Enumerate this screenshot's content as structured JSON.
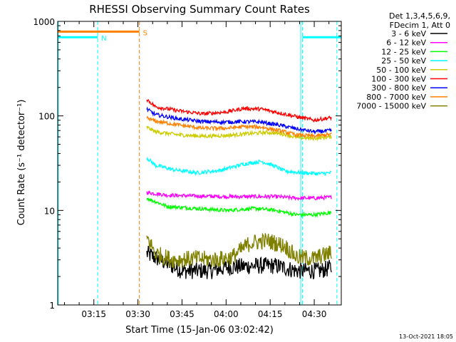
{
  "chart_data": {
    "type": "line",
    "title": "RHESSI Observing Summary Count Rates",
    "xlabel": "Start Time (15-Jan-06 03:02:42)",
    "ylabel": "Count Rate (s⁻¹ detector⁻¹)",
    "x_ticks": [
      "03:15",
      "03:30",
      "03:45",
      "04:00",
      "04:15",
      "04:30"
    ],
    "x_tick_minutes": [
      15,
      30,
      45,
      60,
      75,
      90
    ],
    "xlim_minutes": [
      2.7,
      99.2
    ],
    "y_scale": "log",
    "ylim": [
      1,
      1000
    ],
    "y_ticks": [
      "1",
      "10",
      "100",
      "1000"
    ],
    "y_tick_values": [
      1,
      10,
      100,
      1000
    ],
    "legend_header": [
      "Det 1,3,4,5,6,9,",
      "FDecim 1, Att 0"
    ],
    "legend_placement": "right",
    "series": [
      {
        "name": "3 - 6 keV",
        "color": "#000000",
        "x": [
          33,
          45,
          55,
          60,
          70,
          77,
          84,
          88,
          92,
          96
        ],
        "y": [
          3.5,
          2.3,
          2.3,
          2.5,
          2.6,
          2.6,
          2.3,
          2.3,
          2.3,
          2.5
        ]
      },
      {
        "name": "6 - 12 keV",
        "color": "#ff00ff",
        "x": [
          33,
          40,
          50,
          60,
          70,
          77,
          84,
          90,
          96
        ],
        "y": [
          15.5,
          14.5,
          14.2,
          14,
          14,
          14,
          13.5,
          13.5,
          13.8
        ]
      },
      {
        "name": "12 - 25 keV",
        "color": "#00ff00",
        "x": [
          33,
          40,
          50,
          60,
          70,
          77,
          84,
          90,
          96
        ],
        "y": [
          13.5,
          11,
          10.5,
          10,
          10.5,
          10,
          9,
          9,
          9.5
        ]
      },
      {
        "name": "25 - 50 keV",
        "color": "#00ffff",
        "x": [
          33,
          36,
          42,
          50,
          58,
          66,
          72,
          76,
          80,
          86,
          92,
          96
        ],
        "y": [
          36,
          30,
          27,
          25,
          26.5,
          31,
          33,
          30,
          26,
          25,
          24.5,
          25
        ]
      },
      {
        "name": "50 - 100 keV",
        "color": "#cccc00",
        "x": [
          33,
          36,
          44,
          52,
          60,
          68,
          74,
          80,
          84,
          90,
          96
        ],
        "y": [
          76,
          68,
          63,
          61,
          62,
          65,
          67,
          64,
          59,
          58,
          60
        ]
      },
      {
        "name": "100 - 300 keV",
        "color": "#ff0000",
        "x": [
          33,
          36,
          44,
          52,
          60,
          66,
          72,
          78,
          84,
          90,
          96
        ],
        "y": [
          150,
          125,
          113,
          105,
          110,
          120,
          118,
          108,
          98,
          90,
          96
        ]
      },
      {
        "name": "300 - 800 keV",
        "color": "#0000ff",
        "x": [
          33,
          36,
          44,
          52,
          60,
          66,
          72,
          78,
          84,
          90,
          96
        ],
        "y": [
          118,
          103,
          93,
          87,
          86,
          87,
          86,
          80,
          73,
          68,
          70
        ]
      },
      {
        "name": "800 - 7000 keV",
        "color": "#ff8000",
        "x": [
          33,
          36,
          44,
          52,
          60,
          66,
          72,
          78,
          84,
          90,
          96
        ],
        "y": [
          95,
          88,
          80,
          74,
          74,
          77,
          76,
          70,
          63,
          61,
          64
        ]
      },
      {
        "name": "7000 - 15000 keV",
        "color": "#808000",
        "x": [
          33,
          36,
          42,
          50,
          56,
          62,
          68,
          74,
          80,
          84,
          90,
          96
        ],
        "y": [
          5.2,
          3.5,
          3.0,
          3.1,
          3.0,
          3.2,
          4.5,
          4.8,
          4.2,
          3.2,
          3.1,
          3.6
        ]
      }
    ],
    "bars": [
      {
        "label": "N",
        "color": "#00ffff",
        "x_start": 2.7,
        "x_end": 16.3,
        "level": 680
      },
      {
        "label": "",
        "color": "#00ffff",
        "x_start": 86,
        "x_end": 99.2,
        "level": 680
      },
      {
        "label": "S",
        "color": "#ff8000",
        "x_start": 2.7,
        "x_end": 30.5,
        "level": 780
      }
    ],
    "markers_dashed": [
      {
        "color": "#00ffff",
        "x": 16.3
      },
      {
        "color": "#ff8000",
        "x": 30.5
      },
      {
        "color": "#00ffff",
        "x": 86
      },
      {
        "color": "#00ffff",
        "x": 97.7
      }
    ],
    "markers_solid": [
      {
        "color": "#00ffff",
        "x": 2.9
      },
      {
        "color": "#00ffff",
        "x": 85.4
      }
    ],
    "footer_timestamp": "13-Oct-2021 18:05"
  }
}
